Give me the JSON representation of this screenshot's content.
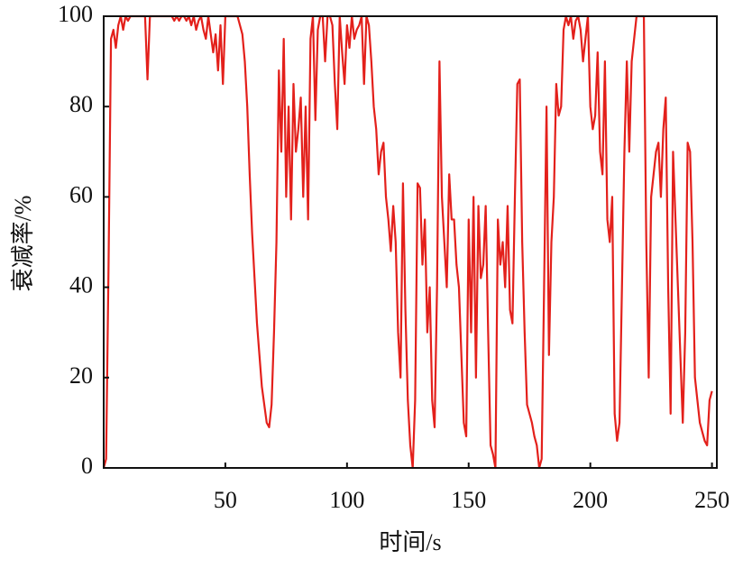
{
  "chart_data": {
    "type": "line",
    "x_label": "时间/s",
    "y_label": "衰减率/%",
    "xlim": [
      0,
      252
    ],
    "ylim": [
      0,
      100
    ],
    "xticks": [
      50,
      100,
      150,
      200,
      250
    ],
    "yticks": [
      0,
      20,
      40,
      60,
      80,
      100
    ],
    "x": [
      0,
      1,
      2,
      3,
      4,
      5,
      6,
      7,
      8,
      9,
      10,
      11,
      12,
      13,
      14,
      15,
      16,
      17,
      18,
      19,
      20,
      21,
      22,
      23,
      24,
      25,
      26,
      27,
      28,
      29,
      30,
      31,
      32,
      33,
      34,
      35,
      36,
      37,
      38,
      39,
      40,
      41,
      42,
      43,
      44,
      45,
      46,
      47,
      48,
      49,
      50,
      51,
      52,
      53,
      54,
      55,
      56,
      57,
      58,
      59,
      60,
      61,
      62,
      63,
      64,
      65,
      66,
      67,
      68,
      69,
      70,
      71,
      72,
      73,
      74,
      75,
      76,
      77,
      78,
      79,
      80,
      81,
      82,
      83,
      84,
      85,
      86,
      87,
      88,
      89,
      90,
      91,
      92,
      93,
      94,
      95,
      96,
      97,
      98,
      99,
      100,
      101,
      102,
      103,
      104,
      105,
      106,
      107,
      108,
      109,
      110,
      111,
      112,
      113,
      114,
      115,
      116,
      117,
      118,
      119,
      120,
      121,
      122,
      123,
      124,
      125,
      126,
      127,
      128,
      129,
      130,
      131,
      132,
      133,
      134,
      135,
      136,
      137,
      138,
      139,
      140,
      141,
      142,
      143,
      144,
      145,
      146,
      147,
      148,
      149,
      150,
      151,
      152,
      153,
      154,
      155,
      156,
      157,
      158,
      159,
      160,
      161,
      162,
      163,
      164,
      165,
      166,
      167,
      168,
      169,
      170,
      171,
      172,
      173,
      174,
      175,
      176,
      177,
      178,
      179,
      180,
      181,
      182,
      183,
      184,
      185,
      186,
      187,
      188,
      189,
      190,
      191,
      192,
      193,
      194,
      195,
      196,
      197,
      198,
      199,
      200,
      201,
      202,
      203,
      204,
      205,
      206,
      207,
      208,
      209,
      210,
      211,
      212,
      213,
      214,
      215,
      216,
      217,
      218,
      219,
      220,
      221,
      222,
      223,
      224,
      225,
      226,
      227,
      228,
      229,
      230,
      231,
      232,
      233,
      234,
      235,
      236,
      237,
      238,
      239,
      240,
      241,
      242,
      243,
      244,
      245,
      246,
      247,
      248,
      249,
      250
    ],
    "series": [
      {
        "color": "#e3201b",
        "values": [
          0,
          2,
          45,
          95,
          97,
          93,
          98,
          100,
          97,
          100,
          99,
          100,
          100,
          100,
          100,
          100,
          100,
          100,
          86,
          100,
          100,
          100,
          100,
          100,
          100,
          100,
          100,
          100,
          100,
          99,
          100,
          99,
          100,
          100,
          99,
          100,
          98,
          100,
          97,
          99,
          100,
          97,
          95,
          100,
          96,
          92,
          96,
          88,
          98,
          85,
          100,
          100,
          100,
          100,
          100,
          100,
          98,
          96,
          90,
          80,
          65,
          52,
          42,
          32,
          25,
          18,
          14,
          10,
          9,
          14,
          30,
          50,
          88,
          70,
          95,
          60,
          80,
          55,
          85,
          70,
          75,
          82,
          60,
          80,
          55,
          95,
          100,
          77,
          97,
          100,
          100,
          90,
          100,
          100,
          98,
          85,
          75,
          100,
          92,
          85,
          98,
          93,
          100,
          95,
          97,
          98,
          100,
          85,
          100,
          98,
          90,
          80,
          75,
          65,
          70,
          72,
          60,
          55,
          48,
          58,
          50,
          30,
          20,
          63,
          35,
          15,
          5,
          0,
          15,
          63,
          62,
          45,
          55,
          30,
          40,
          15,
          9,
          40,
          90,
          60,
          50,
          40,
          65,
          55,
          55,
          45,
          40,
          25,
          10,
          7,
          55,
          30,
          60,
          20,
          58,
          42,
          45,
          58,
          30,
          5,
          3,
          0,
          55,
          45,
          50,
          40,
          58,
          35,
          32,
          60,
          85,
          86,
          50,
          30,
          14,
          12,
          10,
          7,
          5,
          0,
          2,
          40,
          80,
          25,
          50,
          60,
          85,
          78,
          80,
          97,
          100,
          98,
          100,
          95,
          99,
          100,
          97,
          90,
          95,
          100,
          80,
          75,
          78,
          92,
          70,
          65,
          90,
          55,
          50,
          60,
          12,
          6,
          10,
          40,
          70,
          90,
          70,
          90,
          95,
          100,
          100,
          100,
          100,
          50,
          20,
          60,
          65,
          70,
          72,
          60,
          75,
          82,
          40,
          12,
          70,
          55,
          40,
          25,
          10,
          30,
          72,
          70,
          50,
          20,
          15,
          10,
          8,
          6,
          5,
          15,
          17
        ]
      }
    ]
  }
}
